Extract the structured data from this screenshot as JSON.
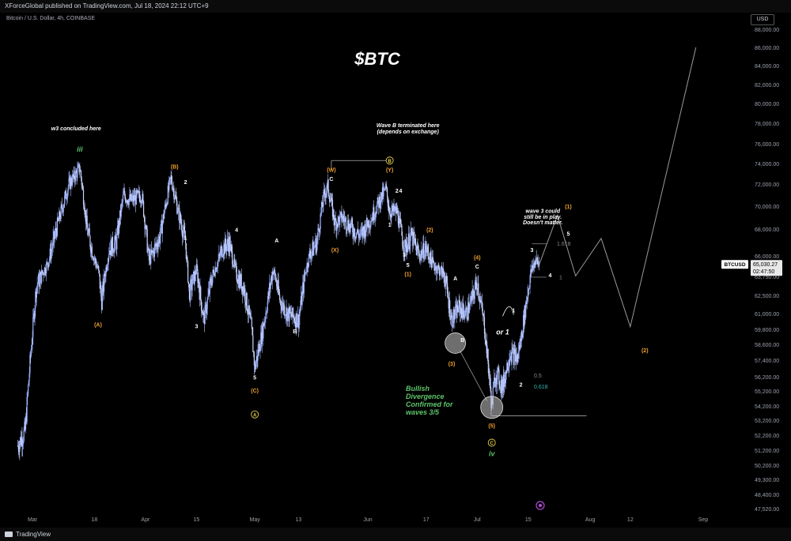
{
  "header": {
    "published": "XForceGlobal published on TradingView.com, Jul 18, 2024 22:12 UTC+9",
    "symbol": "Bitcoin / U.S. Dollar, 4h, COINBASE",
    "currency": "USD"
  },
  "footer": {
    "brand": "TradingView"
  },
  "colors": {
    "background": "#000000",
    "candle_up": "#9fb4ff",
    "candle_down": "#c9d4ff",
    "orange": "#f0a030",
    "green": "#5ec46a",
    "yellow": "#e7d34a",
    "teal": "#29b8b0",
    "white": "#ffffff",
    "grey": "#888888"
  },
  "chart_data": {
    "type": "candlestick",
    "title": "$BTC",
    "price_axis": {
      "labels": [
        "88,000.00",
        "86,000.00",
        "84,000.00",
        "82,000.00",
        "80,000.00",
        "78,000.00",
        "76,000.00",
        "74,000.00",
        "72,000.00",
        "70,000.00",
        "68,000.00",
        "66,000.00",
        "63,750.00",
        "62,500.00",
        "61,000.00",
        "59,800.00",
        "58,600.00",
        "57,400.00",
        "56,200.00",
        "55,200.00",
        "54,200.00",
        "53,200.00",
        "52,200.00",
        "51,200.00",
        "50,200.00",
        "49,300.00",
        "48,400.00",
        "47,520.00"
      ],
      "current_price": "65,030.27",
      "current_tag": "BTCUSD",
      "countdown": "02:47:50"
    },
    "time_axis": {
      "labels": [
        "Mar",
        "18",
        "Apr",
        "15",
        "May",
        "13",
        "Jun",
        "17",
        "Jul",
        "15",
        "Aug",
        "12",
        "Sep"
      ]
    },
    "price_path": [
      [
        "2024-02-26",
        51500
      ],
      [
        "2024-02-28",
        52500
      ],
      [
        "2024-03-02",
        63000
      ],
      [
        "2024-03-05",
        65000
      ],
      [
        "2024-03-08",
        68500
      ],
      [
        "2024-03-11",
        72000
      ],
      [
        "2024-03-13",
        73000
      ],
      [
        "2024-03-14",
        73600
      ],
      [
        "2024-03-16",
        68000
      ],
      [
        "2024-03-19",
        64500
      ],
      [
        "2024-03-20",
        62000
      ],
      [
        "2024-03-22",
        66500
      ],
      [
        "2024-03-24",
        67000
      ],
      [
        "2024-03-26",
        71000
      ],
      [
        "2024-03-28",
        70500
      ],
      [
        "2024-03-31",
        71000
      ],
      [
        "2024-04-02",
        65500
      ],
      [
        "2024-04-05",
        67500
      ],
      [
        "2024-04-08",
        72600
      ],
      [
        "2024-04-10",
        69500
      ],
      [
        "2024-04-12",
        67000
      ],
      [
        "2024-04-13",
        62500
      ],
      [
        "2024-04-15",
        64500
      ],
      [
        "2024-04-17",
        60500
      ],
      [
        "2024-04-19",
        63500
      ],
      [
        "2024-04-22",
        66500
      ],
      [
        "2024-04-24",
        67000
      ],
      [
        "2024-04-26",
        64000
      ],
      [
        "2024-04-28",
        63000
      ],
      [
        "2024-04-30",
        60000
      ],
      [
        "2024-05-01",
        56800
      ],
      [
        "2024-05-03",
        59500
      ],
      [
        "2024-05-06",
        64500
      ],
      [
        "2024-05-08",
        62000
      ],
      [
        "2024-05-10",
        61000
      ],
      [
        "2024-05-13",
        60500
      ],
      [
        "2024-05-15",
        64500
      ],
      [
        "2024-05-16",
        66000
      ],
      [
        "2024-05-18",
        67000
      ],
      [
        "2024-05-20",
        71000
      ],
      [
        "2024-05-21",
        71800
      ],
      [
        "2024-05-23",
        68500
      ],
      [
        "2024-05-25",
        69000
      ],
      [
        "2024-05-28",
        68000
      ],
      [
        "2024-05-30",
        67500
      ],
      [
        "2024-06-02",
        69000
      ],
      [
        "2024-06-05",
        71000
      ],
      [
        "2024-06-06",
        71500
      ],
      [
        "2024-06-07",
        69500
      ],
      [
        "2024-06-09",
        69500
      ],
      [
        "2024-06-11",
        66500
      ],
      [
        "2024-06-13",
        67500
      ],
      [
        "2024-06-15",
        66000
      ],
      [
        "2024-06-17",
        66500
      ],
      [
        "2024-06-19",
        65000
      ],
      [
        "2024-06-22",
        64000
      ],
      [
        "2024-06-24",
        60500
      ],
      [
        "2024-06-26",
        61500
      ],
      [
        "2024-06-28",
        61000
      ],
      [
        "2024-06-30",
        62500
      ],
      [
        "2024-07-01",
        63500
      ],
      [
        "2024-07-03",
        60000
      ],
      [
        "2024-07-05",
        54200
      ],
      [
        "2024-07-06",
        56500
      ],
      [
        "2024-07-08",
        55500
      ],
      [
        "2024-07-10",
        58000
      ],
      [
        "2024-07-12",
        57500
      ],
      [
        "2024-07-13",
        59000
      ],
      [
        "2024-07-15",
        63000
      ],
      [
        "2024-07-16",
        64500
      ],
      [
        "2024-07-17",
        65500
      ],
      [
        "2024-07-18",
        65030
      ]
    ],
    "projection_path": [
      [
        "2024-07-18",
        65030
      ],
      [
        "2024-07-23",
        69200
      ],
      [
        "2024-07-28",
        63800
      ],
      [
        "2024-08-04",
        67300
      ],
      [
        "2024-08-12",
        60000
      ],
      [
        "2024-08-30",
        86000
      ]
    ],
    "wave_labels": [
      {
        "text": "iii",
        "date": "2024-03-14",
        "price": 75200,
        "color": "green",
        "style": "italic"
      },
      {
        "text": "(A)",
        "date": "2024-03-19",
        "price": 60000,
        "color": "orange"
      },
      {
        "text": "(B)",
        "date": "2024-04-09",
        "price": 73500,
        "color": "orange"
      },
      {
        "text": "2",
        "date": "2024-04-12",
        "price": 72000,
        "color": "white"
      },
      {
        "text": "1",
        "date": "2024-04-12",
        "price": 67200,
        "color": "white"
      },
      {
        "text": "3",
        "date": "2024-04-15",
        "price": 59900,
        "color": "white"
      },
      {
        "text": "4",
        "date": "2024-04-26",
        "price": 67800,
        "color": "white"
      },
      {
        "text": "5",
        "date": "2024-05-01",
        "price": 56000,
        "color": "white"
      },
      {
        "text": "(C)",
        "date": "2024-05-01",
        "price": 55100,
        "color": "orange"
      },
      {
        "text": "A",
        "date": "2024-05-07",
        "price": 67000,
        "color": "white"
      },
      {
        "text": "B",
        "date": "2024-05-12",
        "price": 59500,
        "color": "white"
      },
      {
        "text": "(W)",
        "date": "2024-05-22",
        "price": 73200,
        "color": "orange"
      },
      {
        "text": "C",
        "date": "2024-05-22",
        "price": 72300,
        "color": "white"
      },
      {
        "text": "(X)",
        "date": "2024-05-23",
        "price": 66300,
        "color": "orange"
      },
      {
        "text": "(Y)",
        "date": "2024-06-07",
        "price": 73200,
        "color": "orange"
      },
      {
        "text": "2",
        "date": "2024-06-09",
        "price": 71200,
        "color": "white"
      },
      {
        "text": "4",
        "date": "2024-06-10",
        "price": 71200,
        "color": "white"
      },
      {
        "text": "1",
        "date": "2024-06-07",
        "price": 68200,
        "color": "white"
      },
      {
        "text": "3",
        "date": "2024-06-11",
        "price": 65900,
        "color": "white"
      },
      {
        "text": "5",
        "date": "2024-06-12",
        "price": 64800,
        "color": "white"
      },
      {
        "text": "(1)",
        "date": "2024-06-12",
        "price": 63800,
        "color": "orange"
      },
      {
        "text": "(2)",
        "date": "2024-06-18",
        "price": 67800,
        "color": "orange"
      },
      {
        "text": "A",
        "date": "2024-06-25",
        "price": 63500,
        "color": "white"
      },
      {
        "text": "B",
        "date": "2024-06-27",
        "price": 58800,
        "color": "white"
      },
      {
        "text": "(3)",
        "date": "2024-06-24",
        "price": 57000,
        "color": "orange"
      },
      {
        "text": "(4)",
        "date": "2024-07-01",
        "price": 65600,
        "color": "orange"
      },
      {
        "text": "C",
        "date": "2024-07-01",
        "price": 64600,
        "color": "white"
      },
      {
        "text": "(5)",
        "date": "2024-07-05",
        "price": 52700,
        "color": "orange"
      },
      {
        "text": "iv",
        "date": "2024-07-05",
        "price": 50800,
        "color": "green",
        "style": "italic"
      },
      {
        "text": "1",
        "date": "2024-07-11",
        "price": 61100,
        "color": "white"
      },
      {
        "text": "or 1",
        "date": "2024-07-08",
        "price": 59400,
        "color": "white",
        "style": "italic"
      },
      {
        "text": "3",
        "date": "2024-07-16",
        "price": 66300,
        "color": "white"
      },
      {
        "text": "4",
        "date": "2024-07-21",
        "price": 63700,
        "color": "white"
      },
      {
        "text": "2",
        "date": "2024-07-13",
        "price": 55500,
        "color": "white"
      },
      {
        "text": "(1)",
        "date": "2024-07-26",
        "price": 69800,
        "color": "orange"
      },
      {
        "text": "5",
        "date": "2024-07-26",
        "price": 67500,
        "color": "white"
      },
      {
        "text": "(2)",
        "date": "2024-08-16",
        "price": 58000,
        "color": "orange"
      }
    ],
    "circled_labels": [
      {
        "text": "A",
        "date": "2024-05-01",
        "price": 53600
      },
      {
        "text": "B",
        "date": "2024-06-07",
        "price": 74300
      },
      {
        "text": "C",
        "date": "2024-07-05",
        "price": 51700
      }
    ],
    "annotations": [
      {
        "text": "w3 concluded here",
        "date": "2024-03-13",
        "price": 77300
      },
      {
        "text": "Wave B terminated here",
        "date": "2024-06-12",
        "price": 77600
      },
      {
        "text": "(depends on exchange)",
        "date": "2024-06-12",
        "price": 77000
      },
      {
        "text": "wave 3 could",
        "date": "2024-07-19",
        "price": 69400
      },
      {
        "text": "still be in play.",
        "date": "2024-07-19",
        "price": 68900
      },
      {
        "text": "Doesn't matter.",
        "date": "2024-07-19",
        "price": 68400
      }
    ],
    "divergence_text": [
      "Bullish",
      "Divergence",
      "Confirmed for",
      "waves 3/5"
    ],
    "fib_labels": [
      {
        "text": "1.618",
        "price": 66900,
        "color": "grey"
      },
      {
        "text": "1",
        "price": 63700,
        "color": "grey"
      },
      {
        "text": "0.5",
        "price": 56300,
        "color": "grey"
      },
      {
        "text": "0.618",
        "price": 55500,
        "color": "teal"
      }
    ]
  }
}
